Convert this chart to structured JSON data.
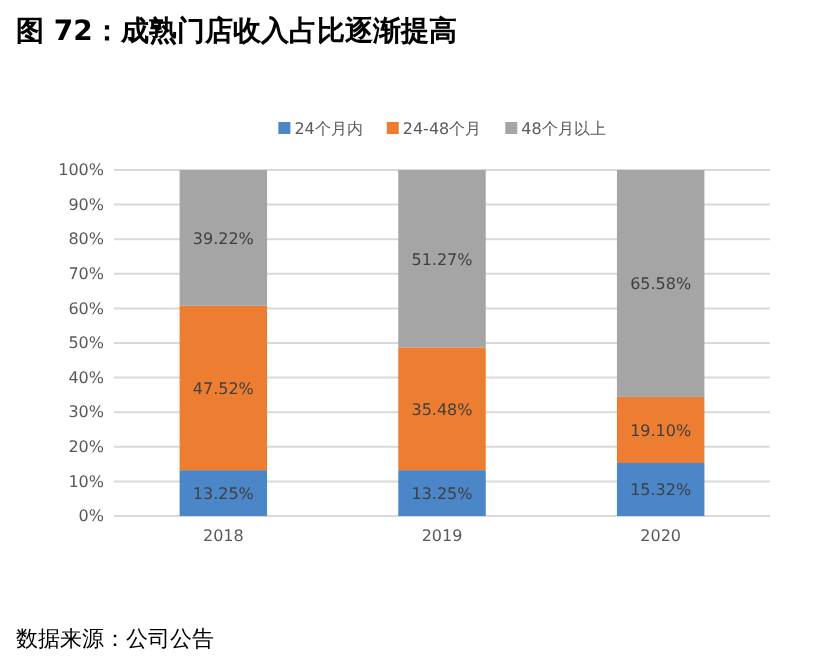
{
  "chart_data": {
    "type": "bar",
    "stacked": true,
    "title": "图 72：成熟门店收入占比逐渐提高",
    "categories": [
      "2018",
      "2019",
      "2020"
    ],
    "series": [
      {
        "name": "24个月内",
        "color": "#4a86c8",
        "values": [
          13.25,
          13.25,
          15.32
        ],
        "value_labels": [
          "13.25%",
          "13.25%",
          "15.32%"
        ]
      },
      {
        "name": "24-48个月",
        "color": "#ed7d31",
        "values": [
          47.52,
          35.48,
          19.1
        ],
        "value_labels": [
          "47.52%",
          "35.48%",
          "19.10%"
        ]
      },
      {
        "name": "48个月以上",
        "color": "#a5a5a5",
        "values": [
          39.22,
          51.27,
          65.58
        ],
        "value_labels": [
          "39.22%",
          "51.27%",
          "65.58%"
        ]
      }
    ],
    "ylim": [
      0,
      100
    ],
    "yticks": [
      {
        "value": 0,
        "label": "0%"
      },
      {
        "value": 10,
        "label": "10%"
      },
      {
        "value": 20,
        "label": "20%"
      },
      {
        "value": 30,
        "label": "30%"
      },
      {
        "value": 40,
        "label": "40%"
      },
      {
        "value": 50,
        "label": "50%"
      },
      {
        "value": 60,
        "label": "60%"
      },
      {
        "value": 70,
        "label": "70%"
      },
      {
        "value": 80,
        "label": "80%"
      },
      {
        "value": 90,
        "label": "90%"
      },
      {
        "value": 100,
        "label": "100%"
      }
    ],
    "grid": "y",
    "legend": "top",
    "annotations": [
      "数据来源：公司公告"
    ]
  }
}
